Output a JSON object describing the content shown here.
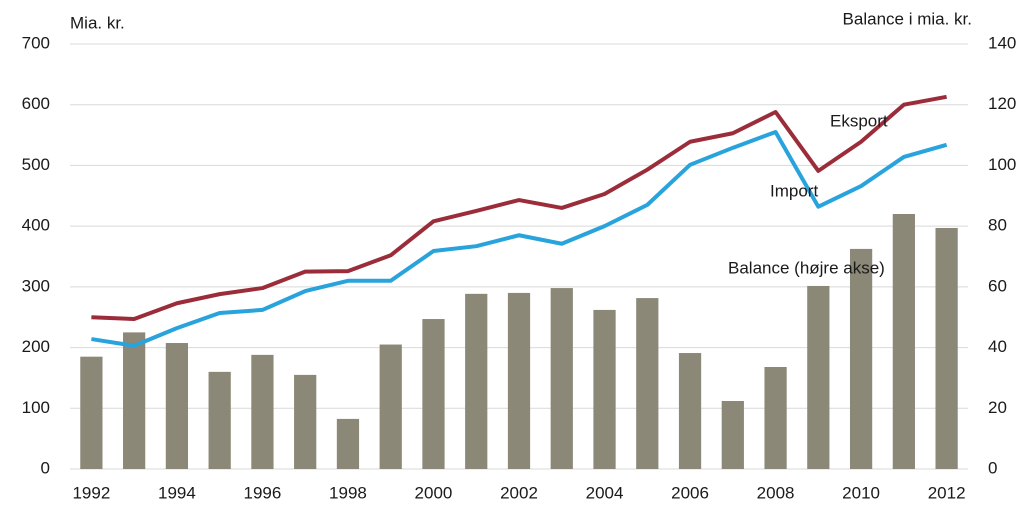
{
  "chart_data": {
    "type": "combo",
    "ylabel": "Mia. kr.",
    "y2label": "Balance i mia. kr.",
    "categories": [
      "1992",
      null,
      "1994",
      null,
      "1996",
      null,
      "1998",
      null,
      "2000",
      null,
      "2002",
      null,
      "2004",
      null,
      "2006",
      null,
      "2008",
      null,
      "2010",
      null,
      "2012"
    ],
    "series": [
      {
        "name": "Balance (højre akse)",
        "type": "bar",
        "axis": "y2",
        "color": "#8b8878",
        "values": [
          37,
          45,
          41.5,
          32,
          37.6,
          31,
          16.5,
          41,
          49.4,
          57.7,
          58,
          59.6,
          52.4,
          56.3,
          38.2,
          22.4,
          33.6,
          60.3,
          72.5,
          84,
          79.4
        ]
      },
      {
        "name": "Eksport",
        "type": "line",
        "color": "#9b2d3a",
        "values": [
          250,
          247,
          273,
          288,
          298,
          325,
          326,
          352,
          408,
          425,
          443,
          430,
          453,
          493,
          539,
          553,
          588,
          491,
          539,
          600,
          613
        ]
      },
      {
        "name": "Import",
        "type": "line",
        "color": "#29a3dc",
        "values": [
          214,
          203,
          232,
          257,
          262,
          293,
          310,
          310,
          359,
          367,
          385,
          371,
          400,
          435,
          501,
          529,
          555,
          432,
          466,
          514,
          534
        ]
      }
    ],
    "ylim": [
      0,
      700
    ],
    "yticks": [
      0,
      100,
      200,
      300,
      400,
      500,
      600,
      700
    ],
    "y2lim": [
      0,
      140
    ],
    "y2ticks": [
      0,
      20,
      40,
      60,
      80,
      100,
      120,
      140
    ],
    "grid": true
  }
}
